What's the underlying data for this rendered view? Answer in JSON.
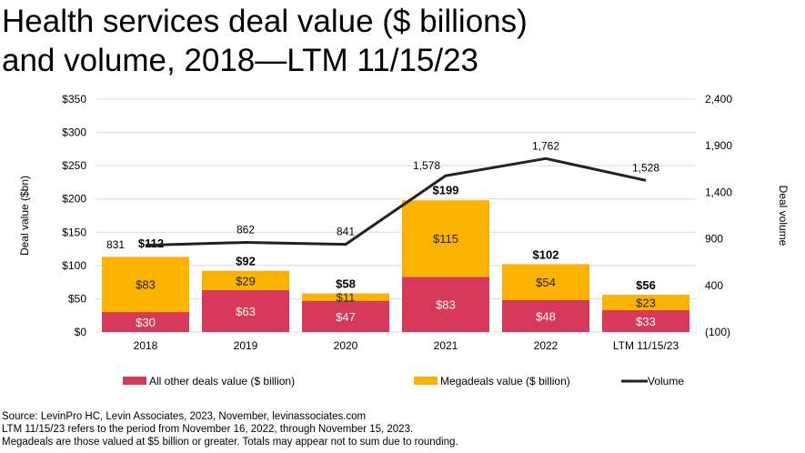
{
  "chart_data": {
    "type": "bar",
    "title_lines": [
      "Health services deal value ($ billions)",
      "and volume, 2018—LTM 11/15/23"
    ],
    "categories": [
      "2018",
      "2019",
      "2020",
      "2021",
      "2022",
      "LTM 11/15/23"
    ],
    "series": [
      {
        "name": "All other deals value ($ billion)",
        "type": "stacked-bar",
        "color": "#d6395a",
        "values": [
          30,
          63,
          47,
          83,
          48,
          33
        ],
        "labels": [
          "$30",
          "$63",
          "$47",
          "$83",
          "$48",
          "$33"
        ]
      },
      {
        "name": "Megadeals value ($ billion)",
        "type": "stacked-bar",
        "color": "#fbb300",
        "values": [
          83,
          29,
          11,
          115,
          54,
          23
        ],
        "labels": [
          "$83",
          "$29",
          "$11",
          "$115",
          "$54",
          "$23"
        ]
      },
      {
        "name": "Volume",
        "type": "line",
        "axis": "right",
        "color": "#222222",
        "values": [
          831,
          862,
          841,
          1578,
          1762,
          1528
        ],
        "labels": [
          "831",
          "862",
          "841",
          "1,578",
          "1,762",
          "1,528"
        ]
      }
    ],
    "totals": [
      "$112",
      "$92",
      "$58",
      "$199",
      "$102",
      "$56"
    ],
    "totals_values": [
      112,
      92,
      58,
      199,
      102,
      56
    ],
    "ylabel": "Deal value ($bn)",
    "ylim": [
      0,
      350
    ],
    "yticks": [
      "$0",
      "$50",
      "$100",
      "$150",
      "$200",
      "$250",
      "$300",
      "$350"
    ],
    "y2label": "Deal volume",
    "y2lim": [
      -100,
      2400
    ],
    "y2ticks": [
      "(100)",
      "400",
      "900",
      "1,400",
      "1,900",
      "2,400"
    ],
    "grid": true,
    "legend": "bottom"
  },
  "footer": [
    "Source: LevinPro HC, Levin Associates, 2023, November, levinassociates.com",
    "LTM 11/15/23 refers to the period from November 16, 2022, through November 15, 2023.",
    "Megadeals are those valued at $5 billion or greater. Totals may appear not to sum due to rounding."
  ]
}
